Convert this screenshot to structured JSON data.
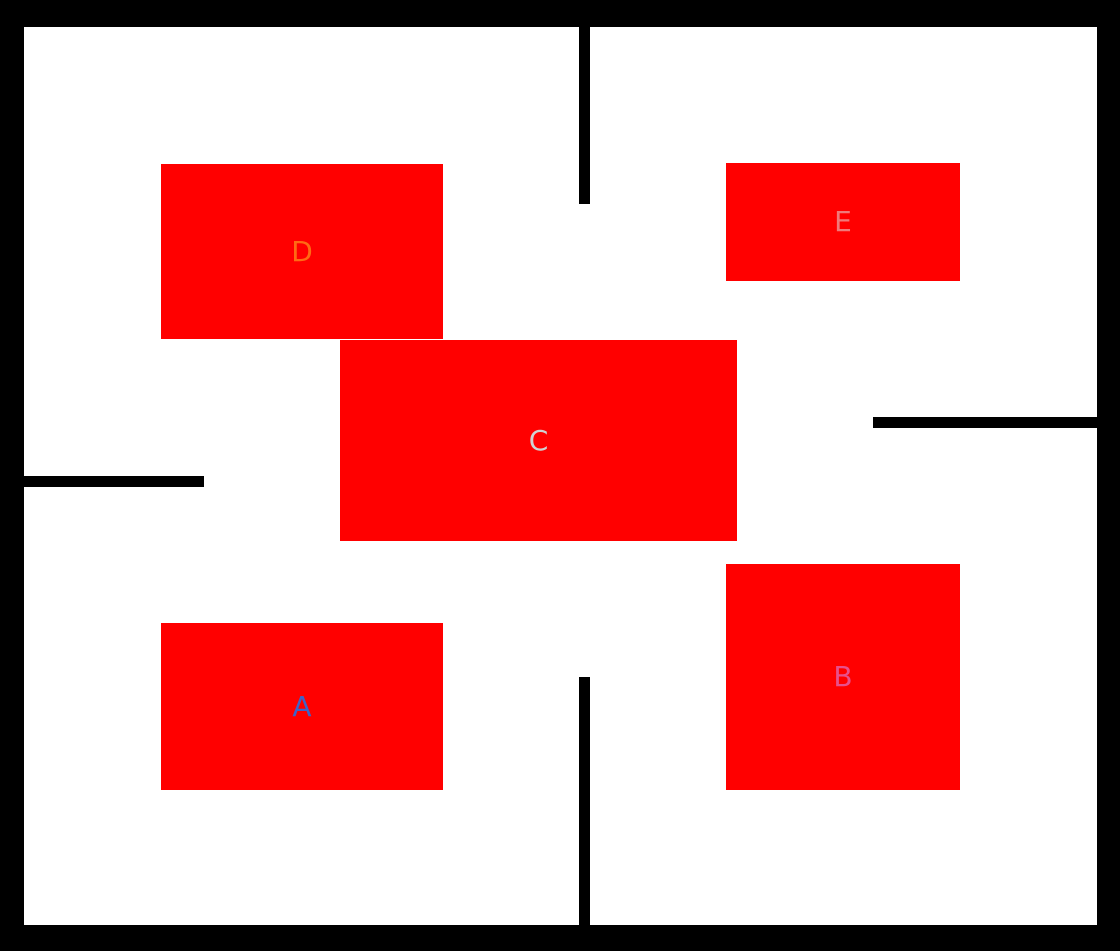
{
  "map": {
    "floor_color": "#ffffff",
    "wall_color": "#000000",
    "room_color": "#ff0000",
    "rooms": [
      {
        "id": "A",
        "label": "A",
        "label_color": "#3e63c8"
      },
      {
        "id": "B",
        "label": "B",
        "label_color": "#e8508c"
      },
      {
        "id": "C",
        "label": "C",
        "label_color": "#d0d0d0"
      },
      {
        "id": "D",
        "label": "D",
        "label_color": "#ff6a14"
      },
      {
        "id": "E",
        "label": "E",
        "label_color": "#f07a7a"
      }
    ]
  }
}
